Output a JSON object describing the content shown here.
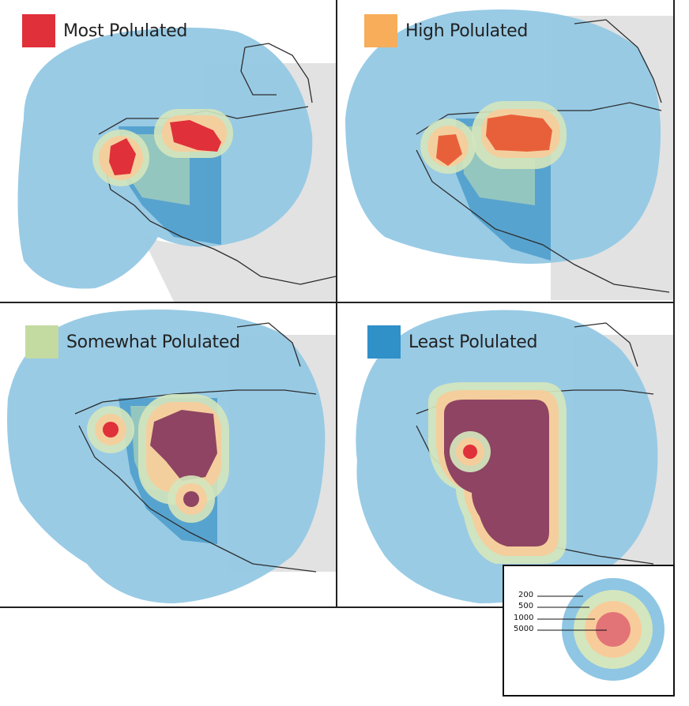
{
  "panels": [
    {
      "id": "most",
      "label": "Most Polulated",
      "color": "#e0303a"
    },
    {
      "id": "high",
      "label": "High Polulated",
      "color": "#f7ad5a"
    },
    {
      "id": "somewhat",
      "label": "Somewhat Polulated",
      "color": "#c3dba0"
    },
    {
      "id": "least",
      "label": "Least Polulated",
      "color": "#3090c8"
    }
  ],
  "scale_legend": {
    "rings": [
      "200",
      "500",
      "1000",
      "5000"
    ],
    "colors": [
      "#8ec6e4",
      "#d4e6bd",
      "#f8cc9a",
      "#e27478"
    ]
  },
  "map_colors": {
    "buffer": "#93c8e4",
    "land": "#e2e2e2",
    "district": "#3a92c6",
    "inner_green": "#9fcdbd",
    "coast": "#2d2d2d"
  }
}
